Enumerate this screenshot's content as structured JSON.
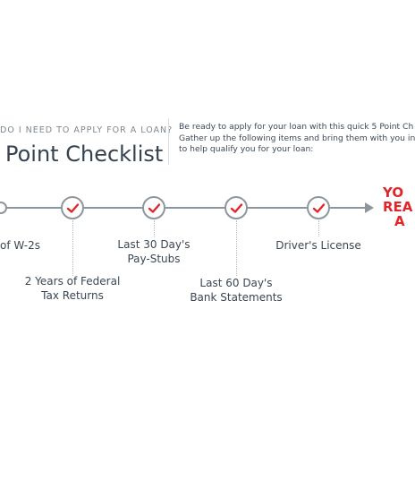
{
  "header": {
    "question": "DO I NEED TO APPLY FOR A LOAN?",
    "title": "Point Checklist"
  },
  "intro": {
    "line1": "Be ready to apply for your loan with this quick 5 Point Ch",
    "line2": "Gather up the following items and bring them with you in",
    "line3": "to help qualify you for your loan:"
  },
  "steps": [
    {
      "line1": "of W-2s",
      "line2": ""
    },
    {
      "line1": "2 Years of Federal",
      "line2": "Tax Returns"
    },
    {
      "line1": "Last 30 Day's",
      "line2": "Pay-Stubs"
    },
    {
      "line1": "Last 60 Day's",
      "line2": "Bank Statements"
    },
    {
      "line1": "Driver's License",
      "line2": ""
    }
  ],
  "goal": {
    "line1": "YO",
    "line2": "REA",
    "line3": "A"
  },
  "colors": {
    "accent": "#e0262b",
    "timeline": "#8e969d",
    "text": "#3a4654"
  },
  "icons": {
    "check": "check-icon"
  }
}
